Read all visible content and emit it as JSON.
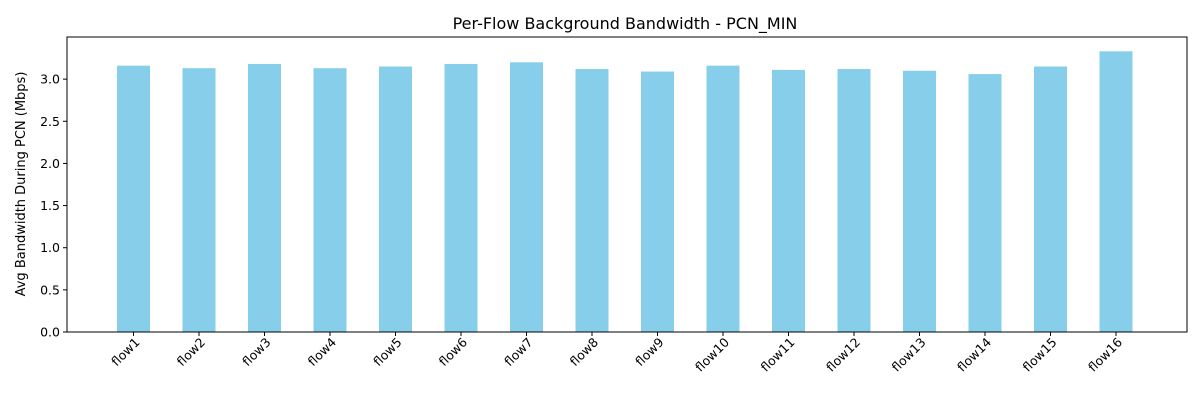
{
  "chart_data": {
    "type": "bar",
    "title": "Per-Flow Background Bandwidth - PCN_MIN",
    "xlabel": "",
    "ylabel": "Avg Bandwidth During PCN (Mbps)",
    "categories": [
      "flow1",
      "flow2",
      "flow3",
      "flow4",
      "flow5",
      "flow6",
      "flow7",
      "flow8",
      "flow9",
      "flow10",
      "flow11",
      "flow12",
      "flow13",
      "flow14",
      "flow15",
      "flow16"
    ],
    "values": [
      3.16,
      3.13,
      3.18,
      3.13,
      3.15,
      3.18,
      3.2,
      3.12,
      3.09,
      3.16,
      3.11,
      3.12,
      3.1,
      3.06,
      3.15,
      3.33
    ],
    "ylim": [
      0,
      3.5
    ],
    "yticks": [
      "0.0",
      "0.5",
      "1.0",
      "1.5",
      "2.0",
      "2.5",
      "3.0"
    ],
    "bar_color": "#87ceeb",
    "grid": false,
    "legend": "none",
    "xtick_rotation": 45
  }
}
